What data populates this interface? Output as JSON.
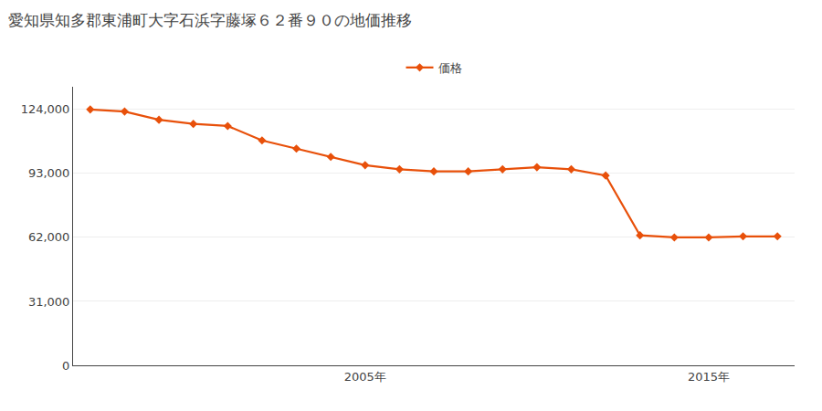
{
  "chart_data": {
    "type": "line",
    "title": "愛知県知多郡東浦町大字石浜字藤塚６２番９０の地価推移",
    "x": [
      1997,
      1998,
      1999,
      2000,
      2001,
      2002,
      2003,
      2004,
      2005,
      2006,
      2007,
      2008,
      2009,
      2010,
      2011,
      2012,
      2013,
      2014,
      2015,
      2016,
      2017
    ],
    "series": [
      {
        "name": "価格",
        "color": "#e8500a",
        "marker": "diamond",
        "values": [
          124000,
          123000,
          119000,
          117000,
          116000,
          109000,
          105000,
          101000,
          97000,
          95000,
          94000,
          94000,
          95000,
          96000,
          95000,
          92000,
          63000,
          62000,
          62000,
          62500,
          62500
        ]
      }
    ],
    "xlim": [
      1996.5,
      2017.5
    ],
    "xticks": [
      {
        "value": 2005,
        "label": "2005年"
      },
      {
        "value": 2015,
        "label": "2015年"
      }
    ],
    "ylim": [
      0,
      135000
    ],
    "yticks": [
      0,
      {
        "value": 31000,
        "label": "31,000"
      },
      {
        "value": 62000,
        "label": "62,000"
      },
      {
        "value": 93000,
        "label": "93,000"
      },
      {
        "value": 124000,
        "label": "124,000"
      }
    ],
    "grid": "y",
    "legend": "top"
  }
}
